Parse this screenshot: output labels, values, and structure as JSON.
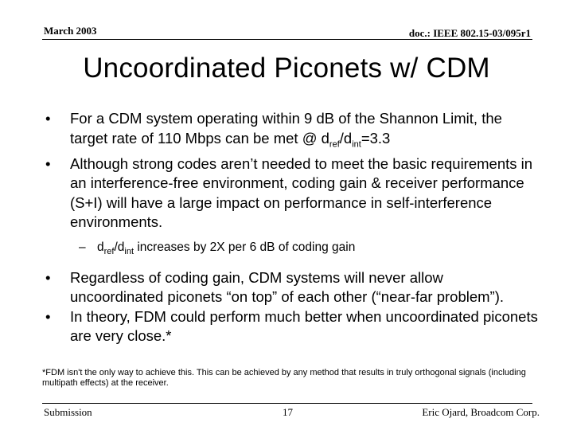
{
  "header": {
    "date": "March 2003",
    "doc_id": "doc.: IEEE 802.15-03/095r1"
  },
  "title": "Uncoordinated Piconets w/ CDM",
  "bullet_symbol": "•",
  "sub_bullet_symbol": "–",
  "bullets": {
    "b1": {
      "text_before": "For a CDM system operating within 9 dB of the Shannon Limit, the target rate of 110 Mbps can be met @ d",
      "sub1": "ref",
      "mid": "/d",
      "sub2": "int",
      "text_after": "=3.3"
    },
    "b2": {
      "text": "Although strong codes aren’t needed to meet the basic requirements in an interference-free environment, coding gain & receiver performance (S+I) will have a large impact on performance in self-interference environments."
    },
    "b2_sub": {
      "text_before": "d",
      "sub1": "ref",
      "mid": "/d",
      "sub2": "int",
      "text_after": " increases by 2X per 6 dB of coding gain"
    },
    "b3": {
      "text": "Regardless of coding gain, CDM systems will never allow uncoordinated piconets “on top” of each other (“near-far problem”)."
    },
    "b4": {
      "text": "In theory, FDM could perform much better when uncoordinated piconets are very close.*"
    }
  },
  "footnote": "*FDM isn't the only way to achieve this.  This can be achieved by any method that results in truly orthogonal signals (including multipath effects) at the receiver.",
  "footer": {
    "left": "Submission",
    "page_number": "17",
    "author": "Eric Ojard, Broadcom Corp."
  }
}
